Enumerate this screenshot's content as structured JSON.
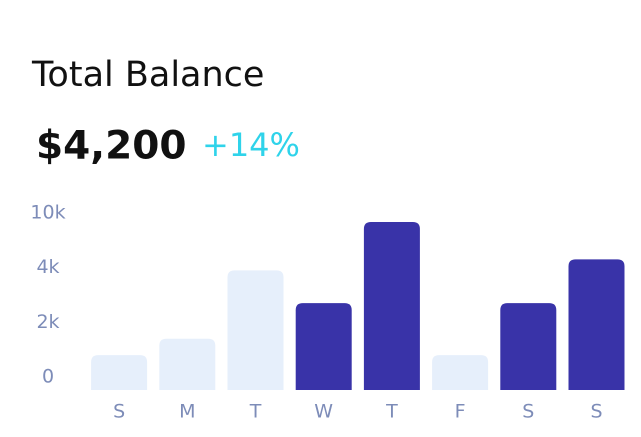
{
  "chart_data": {
    "type": "bar",
    "title": "Total Balance",
    "amount": "$4,200",
    "change": "+14%",
    "categories": [
      "S",
      "M",
      "T",
      "W",
      "T",
      "F",
      "S",
      "S"
    ],
    "values": [
      800,
      1400,
      3900,
      2700,
      9000,
      800,
      2700,
      4900
    ],
    "colors": [
      "#e6effb",
      "#e6effb",
      "#e6effb",
      "#3933a8",
      "#3933a8",
      "#e6effb",
      "#3933a8",
      "#3933a8"
    ],
    "ylim": [
      0,
      10000
    ],
    "yticks": [
      0,
      {
        "value": 2000,
        "label": "2k"
      },
      {
        "value": 4000,
        "label": "4k"
      },
      {
        "value": 10000,
        "label": "10k"
      }
    ],
    "grid": false
  }
}
